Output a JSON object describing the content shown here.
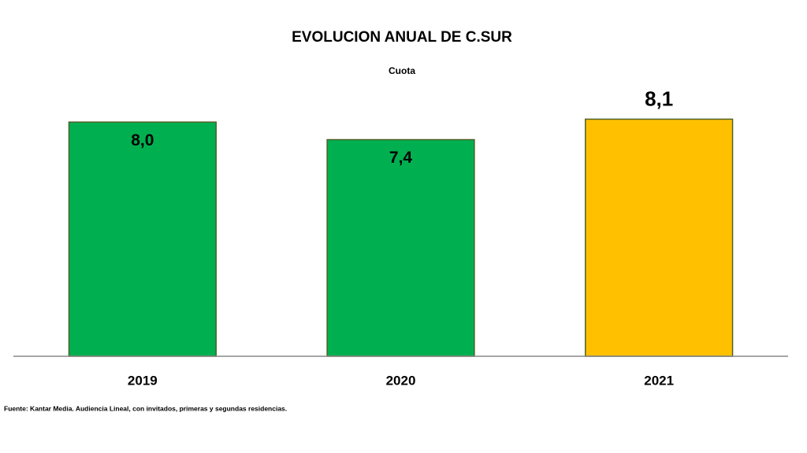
{
  "chart_data": {
    "type": "bar",
    "title": "EVOLUCION ANUAL DE C.SUR",
    "subtitle": "Cuota",
    "categories": [
      "2019",
      "2020",
      "2021"
    ],
    "values": [
      8.0,
      7.4,
      8.1
    ],
    "value_labels": [
      "8,0",
      "7,4",
      "8,1"
    ],
    "colors": [
      "#00b050",
      "#00b050",
      "#ffc000"
    ],
    "ylim": [
      0,
      9
    ],
    "source": "Fuente: Kantar Media. Audiencia Lineal, con invitados, primeras y segundas residencias."
  }
}
